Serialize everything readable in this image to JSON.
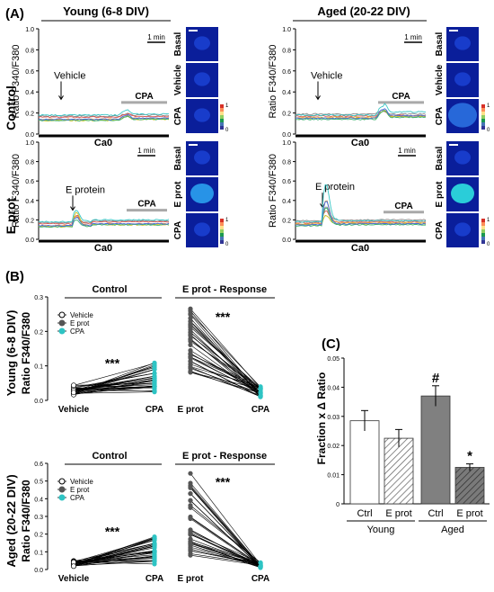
{
  "colors": {
    "trace_gray": "#8a8a8a",
    "trace_red": "#d9534f",
    "trace_orange": "#e8a13a",
    "trace_yellow": "#c8c020",
    "trace_green": "#3cb371",
    "trace_blue": "#4169e1",
    "trace_cyan": "#36c5c5",
    "cpa_bar": "#a9a9a9",
    "cyan_point": "#2ec4c4",
    "bar_hatch_young": "#666666",
    "bar_aged_ctrl": "#808080",
    "bar_aged_eprot": "#555555",
    "image_bg": "#0a1e9a"
  },
  "panelA": {
    "label": "(A)",
    "young_title": "Young (6-8 DIV)",
    "aged_title": "Aged (20-22 DIV)",
    "row_control": "Control",
    "row_eprot": "E prot",
    "ylabel": "Ratio F340/F380",
    "y_ticks": [
      "0.0",
      "0.2",
      "0.4",
      "0.6",
      "0.8",
      "1.0"
    ],
    "scale": "1 min",
    "ca0": "Ca0",
    "cpa": "CPA",
    "vehicle": "Vehicle",
    "eprotein": "E protein",
    "img_labels_control": [
      "Basal",
      "Vehicle",
      "CPA"
    ],
    "img_labels_eprot": [
      "Basal",
      "E prot",
      "CPA"
    ],
    "colorbar_max": "1",
    "colorbar_min": "0"
  },
  "panelB": {
    "label": "(B)",
    "young_ylabel": "Young (6-8 DIV)",
    "aged_ylabel": "Aged (20-22 DIV)",
    "ylabel2": "Ratio F340/F380",
    "control_title": "Control",
    "eprot_title": "E prot - Response",
    "young_ticks": [
      "0.0",
      "0.1",
      "0.2",
      "0.3"
    ],
    "aged_ticks": [
      "0.0",
      "0.1",
      "0.2",
      "0.3",
      "0.4",
      "0.5",
      "0.6"
    ],
    "legend": [
      "Vehicle",
      "E prot",
      "CPA"
    ],
    "sig": "***",
    "x_vehicle": "Vehicle",
    "x_cpa": "CPA",
    "x_eprot": "E prot"
  },
  "chart_data": {
    "type": "bar",
    "title": "(C)",
    "ylabel": "Fraction x Δ Ratio",
    "categories": [
      "Ctrl",
      "E prot",
      "Ctrl",
      "E prot"
    ],
    "groups": [
      "Young",
      "Aged"
    ],
    "values": [
      0.0285,
      0.0225,
      0.037,
      0.0125
    ],
    "errors": [
      0.0035,
      0.003,
      0.0035,
      0.0012
    ],
    "annotations": [
      "",
      "",
      "#",
      "*"
    ],
    "ylim": [
      0,
      0.05
    ],
    "ticks": [
      "0",
      "0.01",
      "0.02",
      "0.03",
      "0.04",
      "0.05"
    ]
  }
}
